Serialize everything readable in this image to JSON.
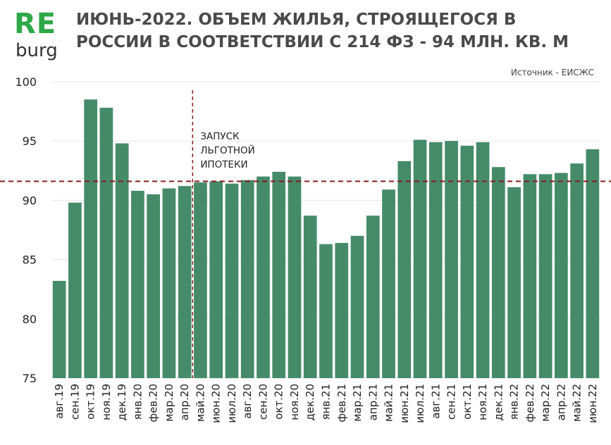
{
  "logo": {
    "re": "RE",
    "burg": "burg",
    "re_color": "#2ea848"
  },
  "title": "ИЮНЬ-2022. ОБЪЕМ ЖИЛЬЯ, СТРОЯЩЕГОСЯ В РОССИИ В СООТВЕТСТВИИ С 214 ФЗ - 94 МЛН. КВ. М",
  "source": "Источник - ЕИСЖС",
  "colors": {
    "bar": "#458b6a",
    "reference": "#8b1a1a",
    "grid": "#e6e6e6"
  },
  "chart_data": {
    "type": "bar",
    "categories": [
      "авг.19",
      "сен.19",
      "окт.19",
      "ноя.19",
      "дек.19",
      "янв.20",
      "фев.20",
      "мар.20",
      "апр.20",
      "май.20",
      "июн.20",
      "июл.20",
      "авг.20",
      "сен.20",
      "окт.20",
      "ноя.20",
      "дек.20",
      "янв.21",
      "фев.21",
      "мар.21",
      "апр.21",
      "май.21",
      "июн.21",
      "июл.21",
      "авг.21",
      "сен.21",
      "окт.21",
      "ноя.21",
      "дек.21",
      "янв.22",
      "фев.22",
      "мар.22",
      "апр.22",
      "май.22",
      "июн.22"
    ],
    "values": [
      83.2,
      89.8,
      98.5,
      97.8,
      94.8,
      90.8,
      90.5,
      91.0,
      91.2,
      91.5,
      91.6,
      91.4,
      91.7,
      92.0,
      92.4,
      92.0,
      88.7,
      86.3,
      86.4,
      87.0,
      88.7,
      90.9,
      93.3,
      95.1,
      94.9,
      95.0,
      94.6,
      94.9,
      92.8,
      91.1,
      92.2,
      92.2,
      92.3,
      93.1,
      94.3
    ],
    "ylim": [
      75,
      100
    ],
    "yticks": [
      75,
      80,
      85,
      90,
      95,
      100
    ],
    "reference_line": {
      "y": 91.6,
      "style": "dashed"
    },
    "event": {
      "after_category": "апр.20",
      "style": "dashed",
      "label_lines": [
        "ЗАПУСК",
        "ЛЬГОТНОЙ",
        "ИПОТЕКИ"
      ]
    },
    "grid": "horizontal",
    "legend": "none"
  }
}
